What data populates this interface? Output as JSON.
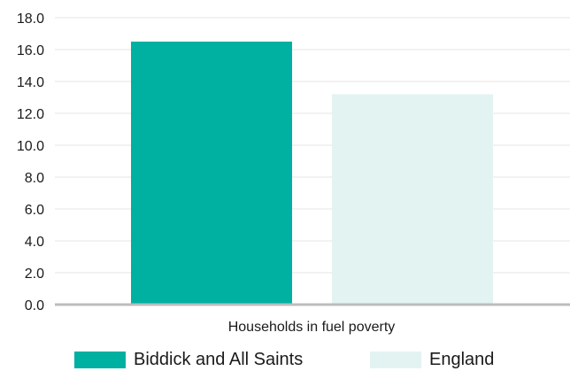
{
  "chart_data": {
    "type": "bar",
    "categories": [
      "Households in fuel poverty"
    ],
    "series": [
      {
        "name": "Biddick and All Saints",
        "values": [
          16.5
        ],
        "color": "#00b0a0"
      },
      {
        "name": "England",
        "values": [
          13.2
        ],
        "color": "#e3f3f2"
      }
    ],
    "title": "",
    "xlabel": "",
    "ylabel": "",
    "ylim": [
      0,
      18
    ],
    "yticks": [
      "0.0",
      "2.0",
      "4.0",
      "6.0",
      "8.0",
      "10.0",
      "12.0",
      "14.0",
      "16.0",
      "18.0"
    ],
    "grid": true,
    "legend_position": "bottom"
  }
}
